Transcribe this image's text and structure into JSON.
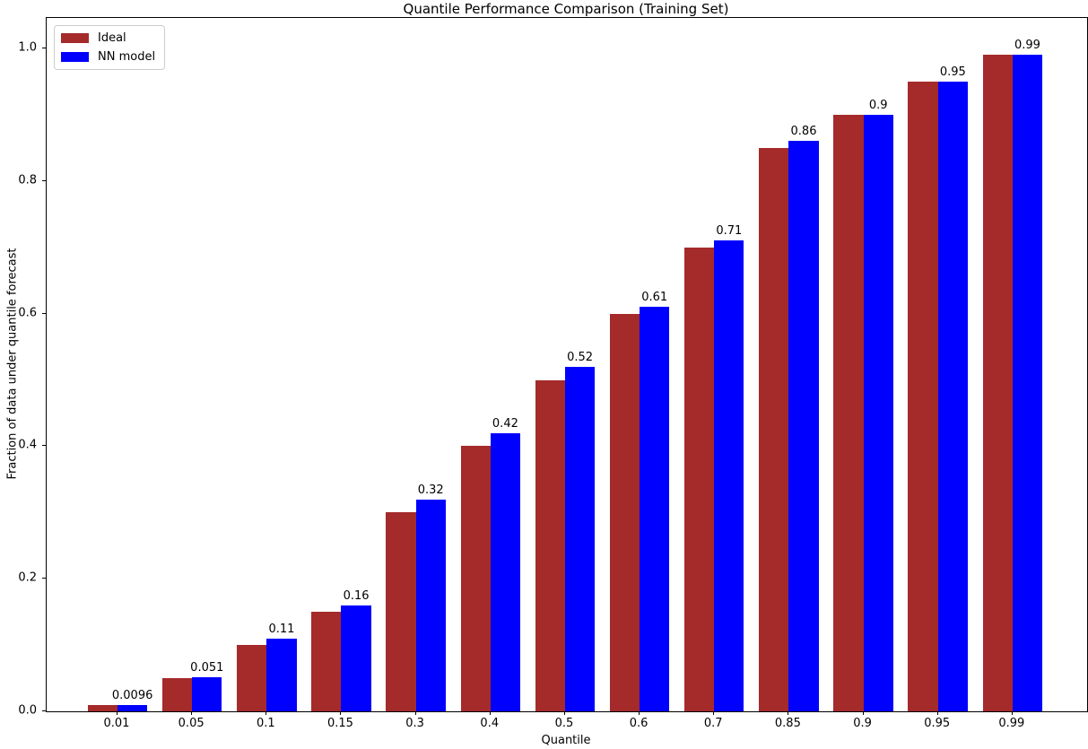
{
  "chart_data": {
    "type": "bar",
    "title": "Quantile Performance Comparison (Training Set)",
    "xlabel": "Quantile",
    "ylabel": "Fraction of data under quantile forecast",
    "categories": [
      "0.01",
      "0.05",
      "0.1",
      "0.15",
      "0.3",
      "0.4",
      "0.5",
      "0.6",
      "0.7",
      "0.85",
      "0.9",
      "0.95",
      "0.99"
    ],
    "series": [
      {
        "name": "Ideal",
        "color": "#A52A2A",
        "values": [
          0.01,
          0.05,
          0.1,
          0.15,
          0.3,
          0.4,
          0.5,
          0.6,
          0.7,
          0.85,
          0.9,
          0.95,
          0.99
        ]
      },
      {
        "name": "NN model",
        "color": "#0000FF",
        "values": [
          0.0096,
          0.051,
          0.11,
          0.16,
          0.32,
          0.42,
          0.52,
          0.61,
          0.71,
          0.86,
          0.9,
          0.95,
          0.99
        ],
        "bar_labels": [
          "0.0096",
          "0.051",
          "0.11",
          "0.16",
          "0.32",
          "0.42",
          "0.52",
          "0.61",
          "0.71",
          "0.86",
          "0.9",
          "0.95",
          "0.99"
        ]
      }
    ],
    "yticks": [
      "0.0",
      "0.2",
      "0.4",
      "0.6",
      "0.8",
      "1.0"
    ],
    "ylim": [
      0,
      1.046
    ],
    "xlim": [
      -0.95,
      13.0
    ],
    "bar_width_units": 0.4,
    "grid": false,
    "legend_position": "upper left",
    "text_color": "#000000",
    "background_color": "#ffffff"
  }
}
